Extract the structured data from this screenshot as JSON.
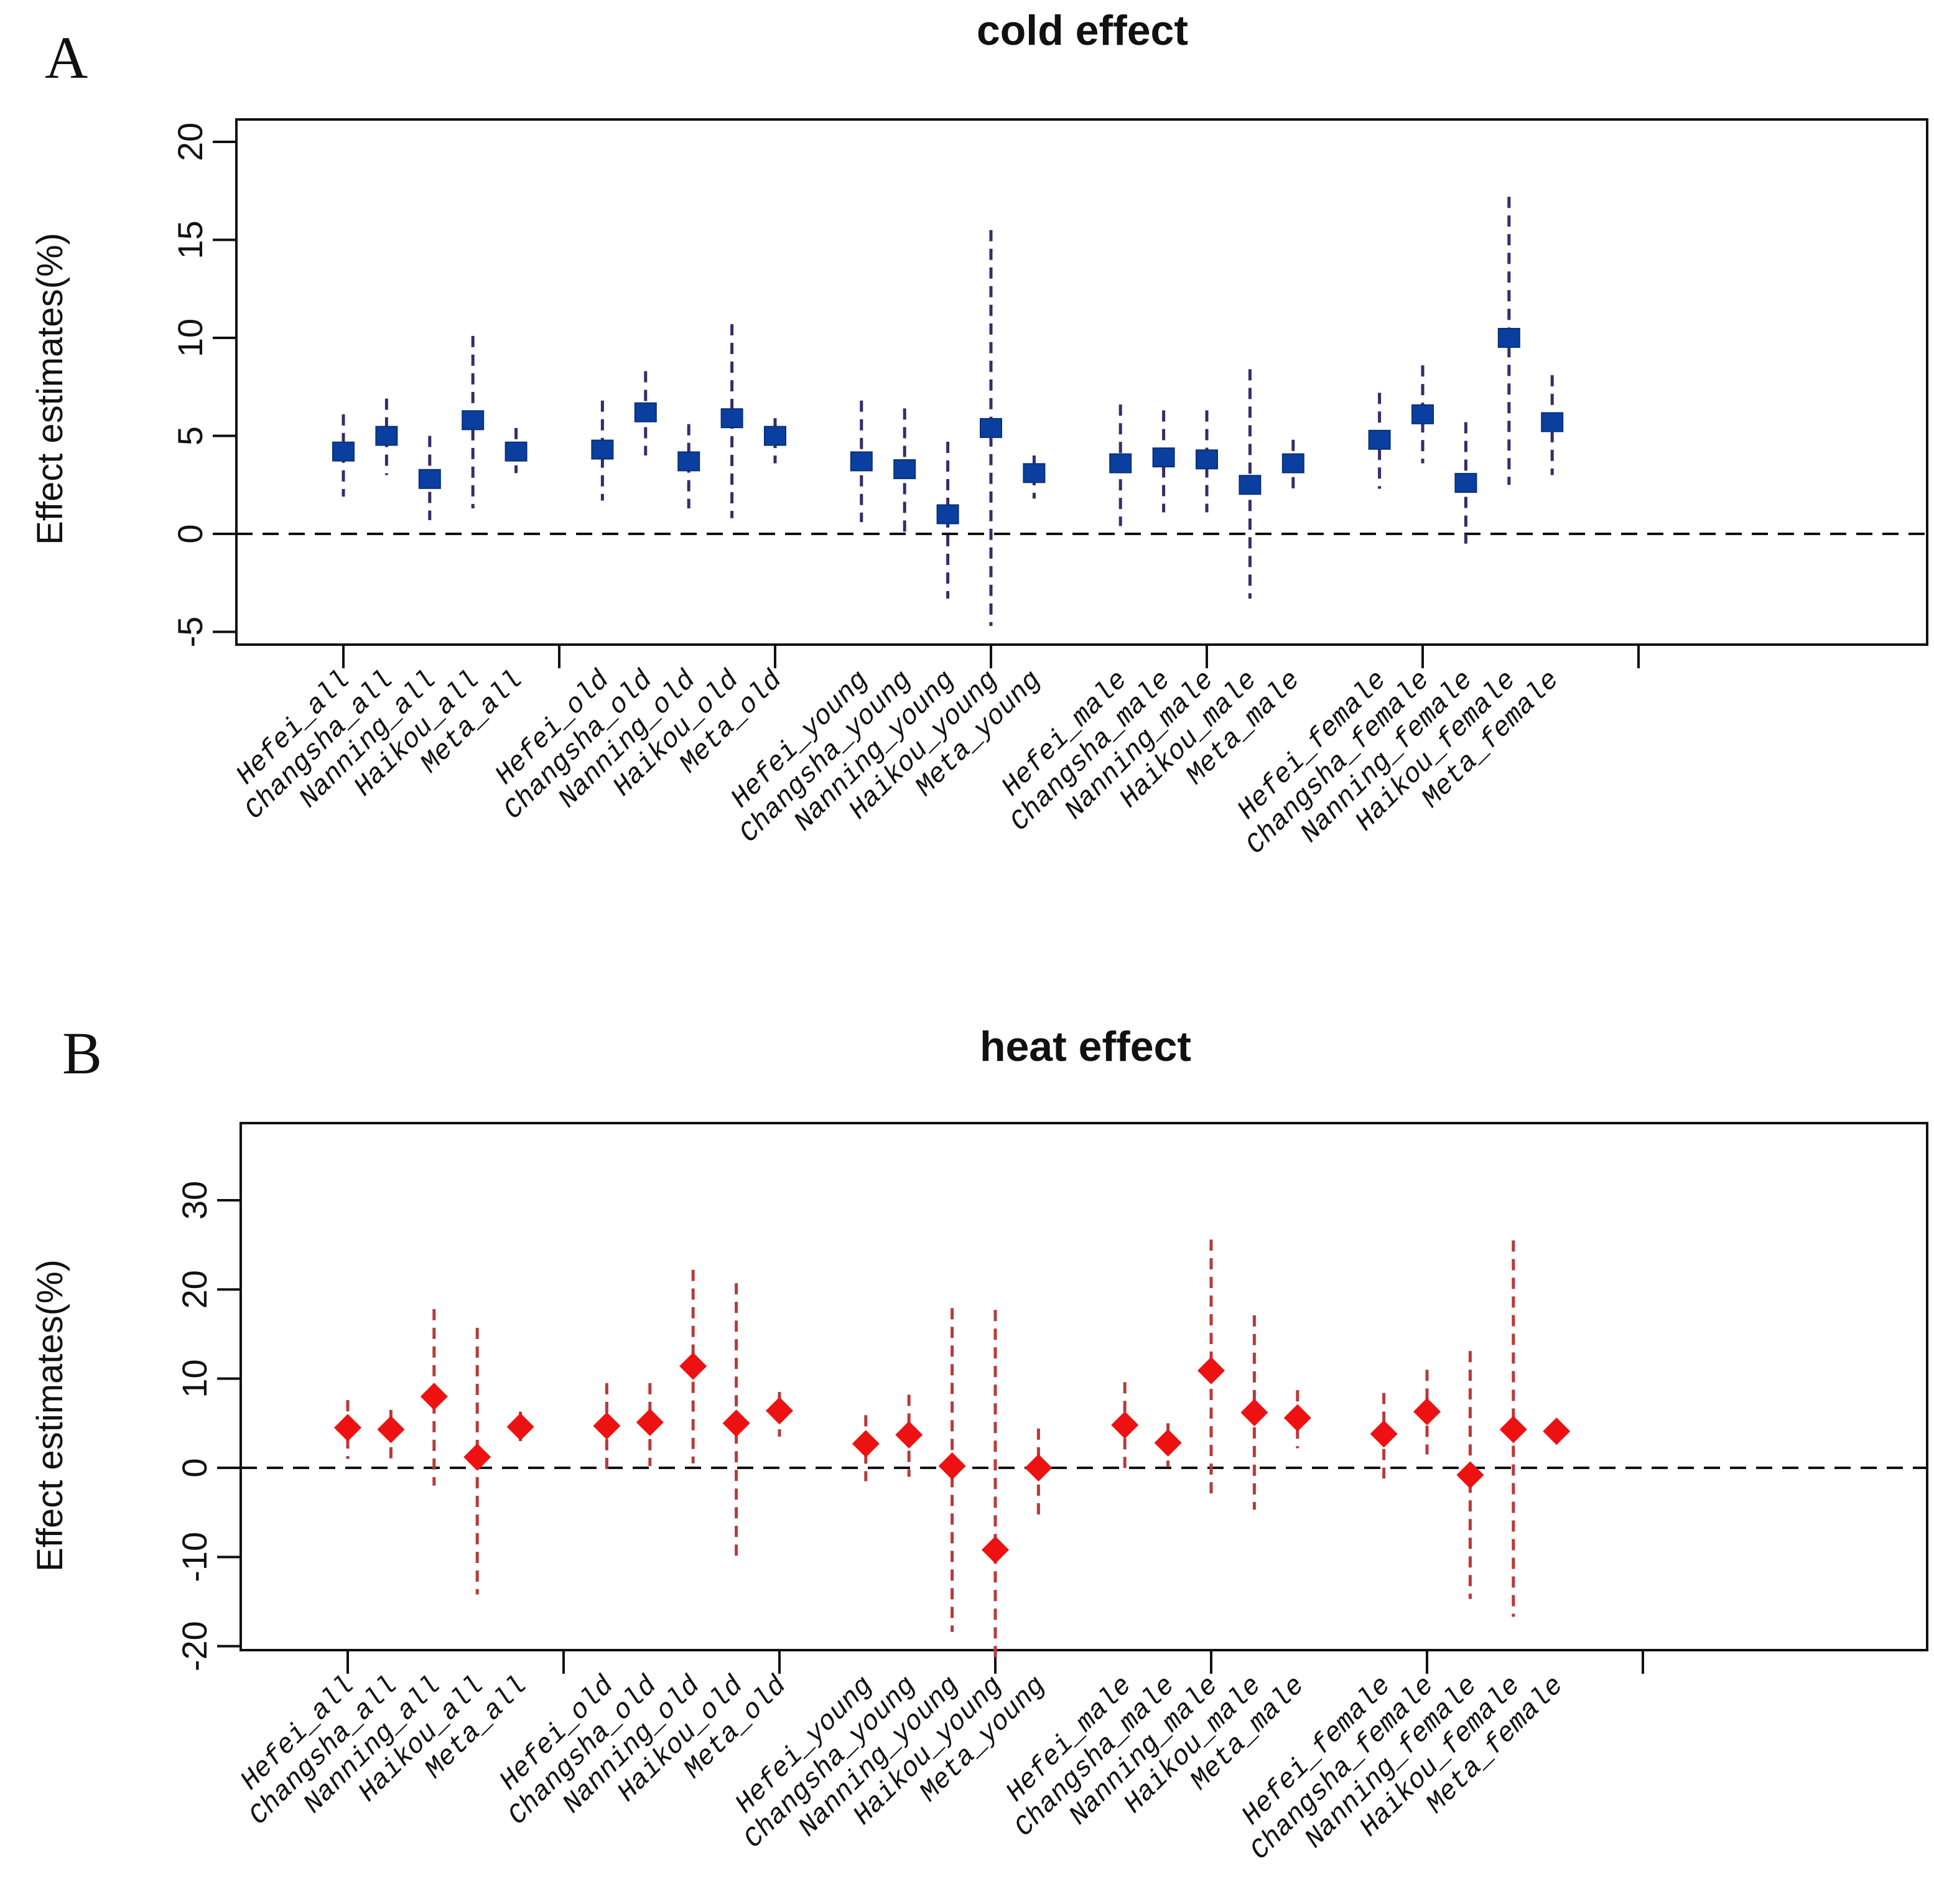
{
  "chart_data": [
    {
      "type": "scatter",
      "panel_letter": "A",
      "title": "cold effect",
      "xlabel": "",
      "ylabel": "Effect estimates(%)",
      "ylim": [
        -6,
        21
      ],
      "yticks": [
        -5,
        0,
        5,
        10,
        15,
        20
      ],
      "ytick_labels": [
        "-5",
        "0",
        "5",
        "10",
        "15",
        "20"
      ],
      "reference_line": 0,
      "marker": "square",
      "color": "#0a3fa0",
      "errorbar_color": "#3a2a6a",
      "groups": [
        "all",
        "old",
        "young",
        "male",
        "female"
      ],
      "categories": [
        "Hefei_all",
        "Changsha_all",
        "Nanning_all",
        "Haikou_all",
        "Meta_all",
        "Hefei_old",
        "Changsha_old",
        "Nanning_old",
        "Haikou_old",
        "Meta_old",
        "Hefei_young",
        "Changsha_young",
        "Nanning_young",
        "Haikou_young",
        "Meta_young",
        "Hefei_male",
        "Changsha_male",
        "Nanning_male",
        "Haikou_male",
        "Meta_male",
        "Hefei_female",
        "Changsha_female",
        "Nanning_female",
        "Haikou_female",
        "Meta_female"
      ],
      "estimate": [
        4.2,
        5.0,
        2.8,
        5.8,
        4.2,
        4.3,
        6.2,
        3.7,
        5.9,
        5.0,
        3.7,
        3.3,
        1.0,
        5.4,
        3.1,
        3.6,
        3.9,
        3.8,
        2.5,
        3.6,
        4.8,
        6.1,
        2.6,
        10.0,
        5.7
      ],
      "lower": [
        1.9,
        3.0,
        0.7,
        1.3,
        3.1,
        1.7,
        4.0,
        1.3,
        0.8,
        3.6,
        0.6,
        0.1,
        -3.3,
        -4.7,
        1.8,
        0.4,
        1.1,
        1.1,
        -3.3,
        2.2,
        2.3,
        3.6,
        -0.5,
        2.5,
        3.0
      ],
      "upper": [
        6.1,
        6.9,
        5.0,
        10.1,
        5.4,
        6.8,
        8.3,
        5.6,
        10.7,
        5.9,
        6.8,
        6.4,
        4.7,
        15.5,
        4.0,
        6.6,
        6.3,
        6.3,
        8.4,
        4.8,
        7.2,
        8.6,
        5.7,
        17.2,
        8.1
      ]
    },
    {
      "type": "scatter",
      "panel_letter": "B",
      "title": "heat effect",
      "xlabel": "",
      "ylabel": "Effect estimates(%)",
      "ylim": [
        -22.5,
        39
      ],
      "yticks": [
        -20,
        -10,
        0,
        10,
        20,
        30
      ],
      "ytick_labels": [
        "-20",
        "-10",
        "0",
        "10",
        "20",
        "30"
      ],
      "reference_line": 0,
      "marker": "diamond",
      "color": "#ee1111",
      "errorbar_color": "#b83a3a",
      "groups": [
        "all",
        "old",
        "young",
        "male",
        "female"
      ],
      "categories": [
        "Hefei_all",
        "Changsha_all",
        "Nanning_all",
        "Haikou_all",
        "Meta_all",
        "Hefei_old",
        "Changsha_old",
        "Nanning_old",
        "Haikou_old",
        "Meta_old",
        "Hefei_young",
        "Changsha_young",
        "Nanning_young",
        "Haikou_young",
        "Meta_young",
        "Hefei_male",
        "Changsha_male",
        "Nanning_male",
        "Haikou_male",
        "Meta_male",
        "Hefei_female",
        "Changsha_female",
        "Nanning_female",
        "Haikou_female",
        "Meta_female"
      ],
      "estimate": [
        4.5,
        4.3,
        8.0,
        1.2,
        4.6,
        4.7,
        5.1,
        11.4,
        5.0,
        6.4,
        2.7,
        3.7,
        0.2,
        -9.2,
        0.0,
        4.8,
        2.8,
        10.9,
        6.2,
        5.6,
        3.8,
        6.3,
        -0.8,
        4.3,
        4.1
      ],
      "lower": [
        1.0,
        1.0,
        -2.0,
        -14.2,
        3.0,
        -0.3,
        0.2,
        0.5,
        -10.5,
        3.5,
        -1.5,
        -1.0,
        -18.4,
        -21.5,
        -5.3,
        -0.3,
        0.1,
        -3.6,
        -4.7,
        2.2,
        -1.2,
        1.5,
        -14.7,
        -16.7,
        3.0
      ],
      "upper": [
        7.6,
        6.5,
        17.8,
        15.7,
        6.3,
        9.5,
        9.5,
        22.2,
        20.7,
        8.5,
        5.9,
        8.2,
        17.9,
        17.7,
        4.4,
        9.6,
        5.0,
        25.6,
        17.1,
        8.7,
        8.4,
        11.0,
        13.1,
        25.5,
        5.4
      ]
    }
  ]
}
